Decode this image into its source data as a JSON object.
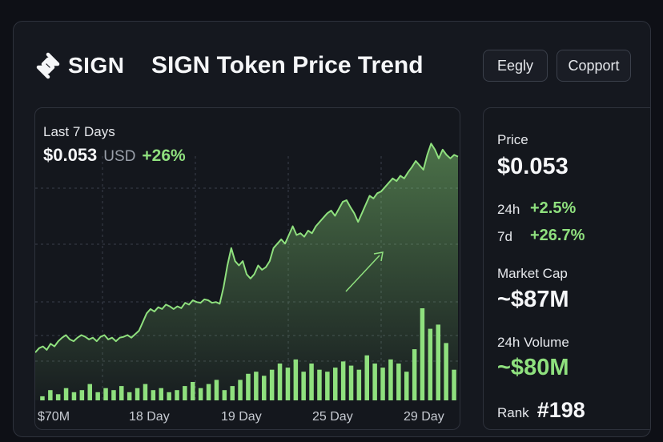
{
  "header": {
    "brand": "SIGN",
    "title": "SIGN Token Price Trend",
    "buttons": [
      "Eegly",
      "Copport"
    ]
  },
  "chart_panel": {
    "range_label": "Last 7 Days",
    "price": "$0.053",
    "unit": "USD",
    "change": "+26%"
  },
  "stats": {
    "price_label": "Price",
    "price_value": "$0.053",
    "h24_label": "24h",
    "h24_change": "+2.5%",
    "d7_label": "7d",
    "d7_change": "+26.7%",
    "market_cap_label": "Market Cap",
    "market_cap_value": "~$87M",
    "volume_label": "24h Volume",
    "volume_value": "~$80M",
    "rank_label": "Rank",
    "rank_value": "#198"
  },
  "colors": {
    "background": "#0e1016",
    "panel": "#14171d",
    "accent_green": "#8fe07e",
    "muted": "#9aa0aa"
  },
  "chart_data": {
    "type": "line",
    "x_tick_labels": [
      "$70M",
      "18 Day",
      "19 Day",
      "25 Day",
      "29 Day"
    ],
    "price_series": [
      0.0305,
      0.031,
      0.0312,
      0.0308,
      0.0315,
      0.0312,
      0.0318,
      0.0322,
      0.0325,
      0.032,
      0.0318,
      0.0322,
      0.0325,
      0.0323,
      0.032,
      0.0322,
      0.0318,
      0.0323,
      0.0325,
      0.032,
      0.0322,
      0.0318,
      0.0322,
      0.0323,
      0.0325,
      0.0322,
      0.0326,
      0.033,
      0.034,
      0.035,
      0.0355,
      0.0352,
      0.0357,
      0.0355,
      0.036,
      0.0358,
      0.0355,
      0.0358,
      0.0356,
      0.0362,
      0.036,
      0.0365,
      0.0363,
      0.0362,
      0.0366,
      0.0365,
      0.0362,
      0.0363,
      0.0361,
      0.038,
      0.0405,
      0.0425,
      0.041,
      0.0405,
      0.041,
      0.0395,
      0.039,
      0.0395,
      0.0405,
      0.04,
      0.0403,
      0.041,
      0.0425,
      0.043,
      0.0435,
      0.043,
      0.044,
      0.045,
      0.044,
      0.0442,
      0.0438,
      0.0445,
      0.0442,
      0.045,
      0.0455,
      0.046,
      0.0465,
      0.0468,
      0.0462,
      0.047,
      0.0478,
      0.048,
      0.0472,
      0.0465,
      0.0455,
      0.0465,
      0.0475,
      0.0485,
      0.0482,
      0.0488,
      0.049,
      0.0495,
      0.05,
      0.0505,
      0.0502,
      0.0508,
      0.0505,
      0.0512,
      0.0518,
      0.0525,
      0.052,
      0.0515,
      0.0532,
      0.0545,
      0.0538,
      0.0528,
      0.0538,
      0.0532,
      0.0528,
      0.0532,
      0.053
    ],
    "volume_series": [
      2,
      5,
      3,
      6,
      4,
      5,
      8,
      4,
      6,
      5,
      7,
      4,
      6,
      8,
      5,
      6,
      4,
      5,
      7,
      9,
      6,
      8,
      10,
      5,
      7,
      10,
      13,
      14,
      12,
      15,
      18,
      16,
      20,
      14,
      18,
      15,
      14,
      16,
      19,
      17,
      15,
      22,
      18,
      16,
      20,
      18,
      14,
      25,
      45,
      35,
      37,
      28,
      15
    ],
    "ylim": [
      0.025,
      0.056
    ]
  }
}
